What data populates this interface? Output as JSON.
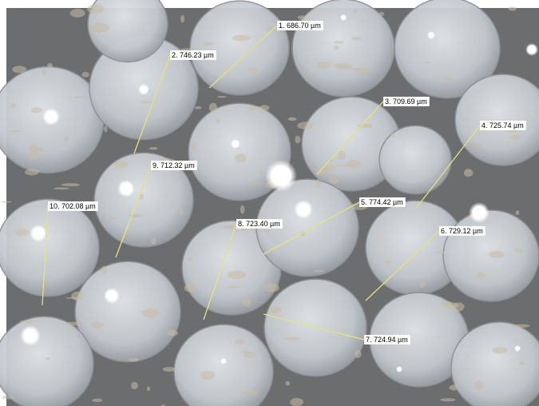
{
  "measurements": [
    "1. 686.70 µm",
    "2. 746.23 µm",
    "3. 709.69 µm",
    "4. 725.74 µm",
    "5. 774.42 µm",
    "6. 729.12 µm",
    "7. 724.94 µm",
    "8. 723.40 µm",
    "9. 712.32 µm",
    "10. 702.08 µm"
  ]
}
